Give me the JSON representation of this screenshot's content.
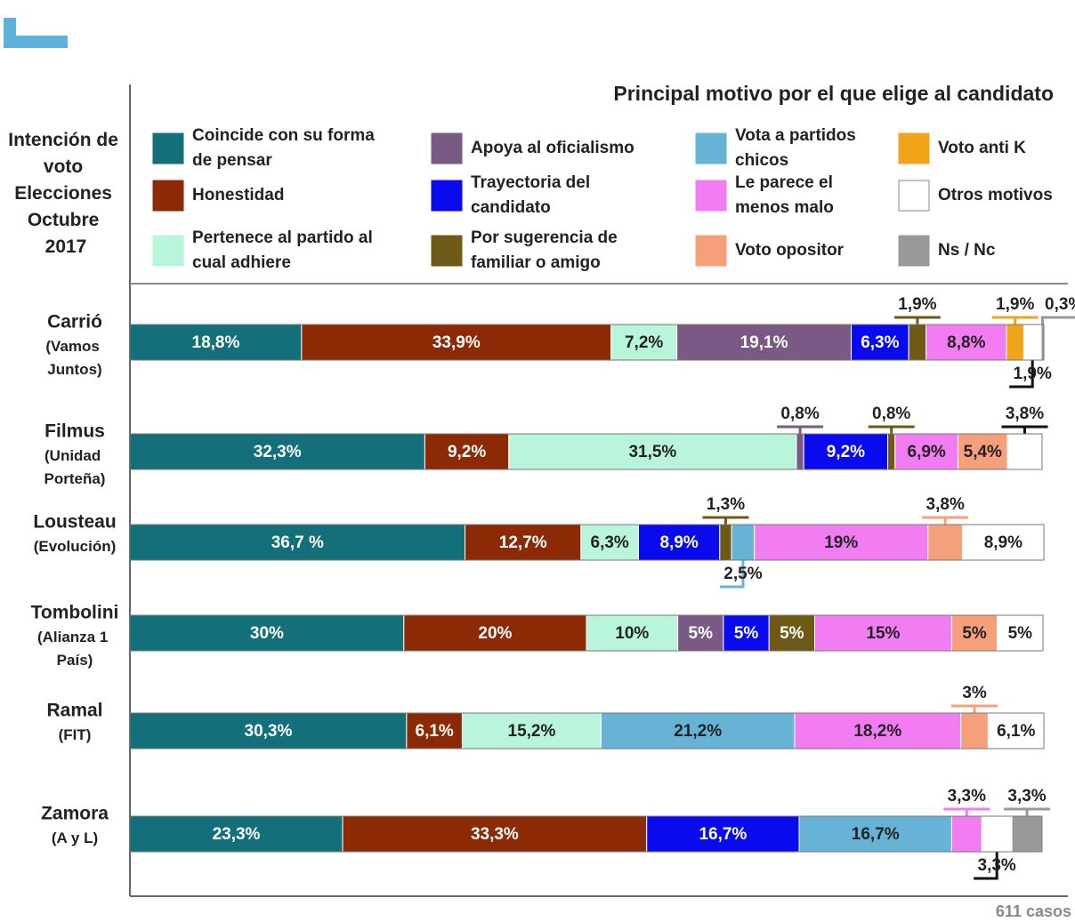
{
  "chart_data": {
    "type": "stacked-bar-horizontal",
    "title": "Principal motivo por el que elige al candidato",
    "subtitle": "Intención de voto Elecciones Octubre 2017",
    "note": "611 casos",
    "categories": [
      "Carrió",
      "Filmus",
      "Lousteau",
      "Tombolini",
      "Ramal",
      "Zamora"
    ],
    "parties": [
      "(Vamos Juntos)",
      "(Unidad Porteña)",
      "(Evolución)",
      "(Alianza 1 País)",
      "(FIT)",
      "(A y L)"
    ],
    "series": [
      {
        "name": "Coincide con su forma de pensar",
        "color": "#13707a",
        "values": [
          18.8,
          32.3,
          36.7,
          30,
          30.3,
          23.3
        ],
        "value_labels": [
          "18,8%",
          "32,3%",
          "36,7 %",
          "30%",
          "30,3%",
          "23,3%"
        ]
      },
      {
        "name": "Honestidad",
        "color": "#8b2a05",
        "values": [
          33.9,
          9.2,
          12.7,
          20,
          6.1,
          33.3
        ],
        "value_labels": [
          "33,9%",
          "9,2%",
          "12,7%",
          "20%",
          "6,1%",
          "33,3%"
        ]
      },
      {
        "name": "Pertenece al partido al cual adhiere",
        "color": "#b8f5da",
        "values": [
          7.2,
          31.5,
          6.3,
          10,
          15.2,
          null
        ],
        "value_labels": [
          "7,2%",
          "31,5%",
          "6,3%",
          "10%",
          "15,2%",
          null
        ]
      },
      {
        "name": "Apoya al oficialismo",
        "color": "#7a5a85",
        "values": [
          19.1,
          0.8,
          null,
          5,
          null,
          null
        ],
        "value_labels": [
          "19,1%",
          "0,8%",
          null,
          "5%",
          null,
          null
        ]
      },
      {
        "name": "Trayectoria del candidato",
        "color": "#0a0aee",
        "values": [
          6.3,
          9.2,
          8.9,
          5,
          null,
          16.7
        ],
        "value_labels": [
          "6,3%",
          "9,2%",
          "8,9%",
          "5%",
          null,
          "16,7%"
        ]
      },
      {
        "name": "Por sugerencia de familiar o amigo",
        "color": "#6e5a16",
        "values": [
          1.9,
          0.8,
          1.3,
          5,
          null,
          null
        ],
        "value_labels": [
          "1,9%",
          "0,8%",
          "1,3%",
          "5%",
          null,
          null
        ]
      },
      {
        "name": "Vota a partidos chicos",
        "color": "#66b3d6",
        "values": [
          null,
          null,
          2.5,
          null,
          21.2,
          16.7
        ],
        "value_labels": [
          null,
          null,
          "2,5%",
          null,
          "21,2%",
          "16,7%"
        ]
      },
      {
        "name": "Le parece el menos malo",
        "color": "#f27cf2",
        "values": [
          8.8,
          6.9,
          19,
          15,
          18.2,
          3.3
        ],
        "value_labels": [
          "8,8%",
          "6,9%",
          "19%",
          "15%",
          "18,2%",
          "3,3%"
        ]
      },
      {
        "name": "Voto opositor",
        "color": "#f5a07a",
        "values": [
          null,
          5.4,
          3.8,
          5,
          3,
          null
        ],
        "value_labels": [
          null,
          "5,4%",
          "3,8%",
          "5%",
          "3%",
          null
        ]
      },
      {
        "name": "Voto anti K",
        "color": "#f0a419",
        "values": [
          1.9,
          null,
          null,
          null,
          null,
          null
        ],
        "value_labels": [
          "1,9%",
          null,
          null,
          null,
          null,
          null
        ]
      },
      {
        "name": "Otros motivos",
        "color": "#ffffff",
        "values": [
          1.9,
          3.8,
          8.9,
          5,
          6.1,
          3.3
        ],
        "value_labels": [
          "1,9%",
          "3,8%",
          "8,9%",
          "5%",
          "6,1%",
          "3,3%"
        ]
      },
      {
        "name": "Ns / Nc",
        "color": "#999999",
        "values": [
          0.3,
          null,
          null,
          null,
          null,
          3.3
        ],
        "value_labels": [
          "0,3%",
          null,
          null,
          null,
          null,
          "3,3%"
        ]
      }
    ]
  }
}
